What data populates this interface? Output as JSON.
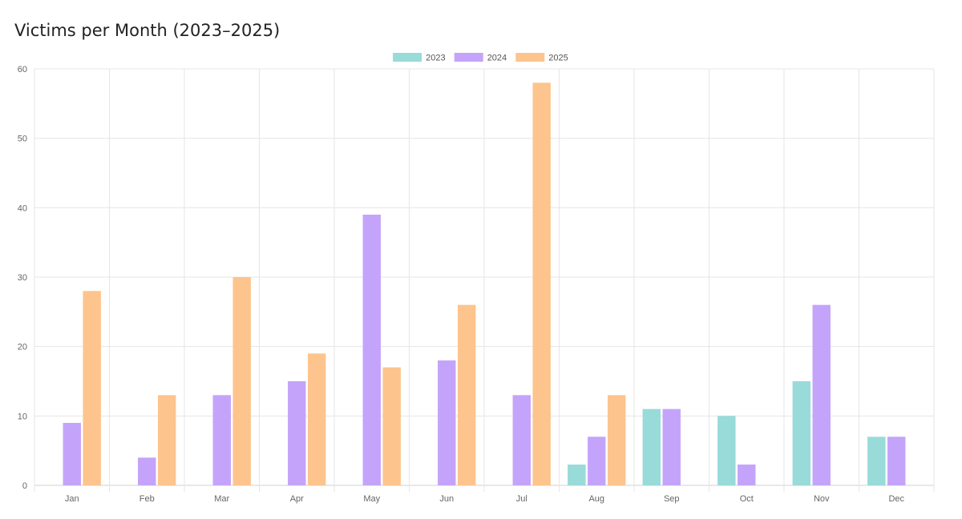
{
  "chart_data": {
    "type": "bar",
    "title": "Victims per Month (2023–2025)",
    "xlabel": "",
    "ylabel": "",
    "ylim": [
      0,
      60
    ],
    "yticks": [
      0,
      10,
      20,
      30,
      40,
      50,
      60
    ],
    "grid": true,
    "legend_position": "top-center",
    "categories": [
      "Jan",
      "Feb",
      "Mar",
      "Apr",
      "May",
      "Jun",
      "Jul",
      "Aug",
      "Sep",
      "Oct",
      "Nov",
      "Dec"
    ],
    "series": [
      {
        "name": "2023",
        "color": "#98dbd9",
        "values": [
          0,
          0,
          0,
          0,
          0,
          0,
          0,
          3,
          11,
          10,
          15,
          7
        ]
      },
      {
        "name": "2024",
        "color": "#c4a4fb",
        "values": [
          9,
          4,
          13,
          15,
          39,
          18,
          13,
          7,
          11,
          3,
          26,
          7
        ]
      },
      {
        "name": "2025",
        "color": "#fdc48d",
        "values": [
          28,
          13,
          30,
          19,
          17,
          26,
          58,
          13,
          0,
          0,
          0,
          0
        ]
      }
    ]
  }
}
